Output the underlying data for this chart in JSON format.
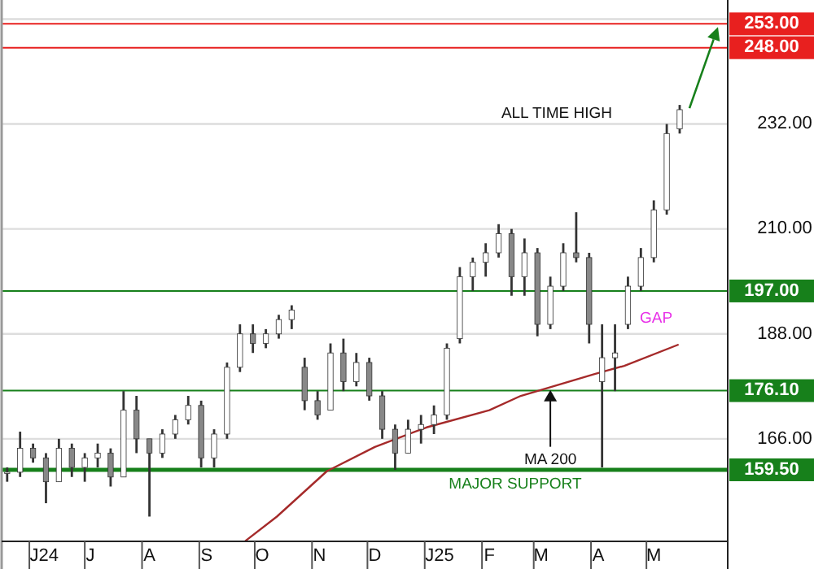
{
  "chart_data": {
    "type": "candlestick",
    "x": [
      "2024-05-20",
      "2024-05-27",
      "2024-06-03",
      "2024-06-10",
      "2024-06-17",
      "2024-06-24",
      "2024-07-01",
      "2024-07-08",
      "2024-07-15",
      "2024-07-22",
      "2024-07-29",
      "2024-08-05",
      "2024-08-12",
      "2024-08-19",
      "2024-08-26",
      "2024-09-02",
      "2024-09-09",
      "2024-09-16",
      "2024-09-23",
      "2024-09-30",
      "2024-10-07",
      "2024-10-14",
      "2024-10-21",
      "2024-10-28",
      "2024-11-04",
      "2024-11-11",
      "2024-11-18",
      "2024-11-25",
      "2024-12-02",
      "2024-12-09",
      "2024-12-16",
      "2024-12-23",
      "2024-12-30",
      "2025-01-06",
      "2025-01-13",
      "2025-01-20",
      "2025-01-27",
      "2025-02-03",
      "2025-02-10",
      "2025-02-17",
      "2025-02-24",
      "2025-03-03",
      "2025-03-10",
      "2025-03-17",
      "2025-03-24",
      "2025-03-31",
      "2025-04-07",
      "2025-04-14",
      "2025-04-21",
      "2025-04-28",
      "2025-05-05",
      "2025-05-12",
      "2025-05-19"
    ],
    "ohlc": [
      [
        159,
        160,
        157,
        159
      ],
      [
        159,
        167.5,
        158,
        164
      ],
      [
        164,
        165,
        161,
        162
      ],
      [
        162,
        163,
        152.5,
        157
      ],
      [
        157,
        166,
        157,
        164
      ],
      [
        164,
        165,
        158,
        160
      ],
      [
        160,
        163,
        157,
        162
      ],
      [
        162,
        165,
        160,
        163
      ],
      [
        163,
        164,
        156,
        158
      ],
      [
        158,
        176,
        158,
        172
      ],
      [
        172,
        175,
        163,
        166
      ],
      [
        166,
        166,
        149.7,
        163
      ],
      [
        163,
        168,
        162,
        167
      ],
      [
        167,
        171,
        166,
        170
      ],
      [
        170,
        175,
        169,
        173
      ],
      [
        173,
        174,
        160,
        162
      ],
      [
        162,
        168,
        160,
        167
      ],
      [
        167,
        182,
        166,
        181
      ],
      [
        181,
        190,
        180,
        188
      ],
      [
        188,
        190,
        184,
        186
      ],
      [
        186,
        189,
        185,
        188
      ],
      [
        188,
        192,
        187,
        191
      ],
      [
        191,
        194,
        189,
        193
      ],
      [
        181,
        183,
        172,
        174
      ],
      [
        174,
        176,
        170,
        171
      ],
      [
        172,
        186,
        172,
        184
      ],
      [
        184,
        187,
        176,
        178
      ],
      [
        178,
        184,
        177,
        182
      ],
      [
        182,
        183,
        174,
        175
      ],
      [
        175,
        176,
        166,
        168
      ],
      [
        168,
        169,
        159.5,
        163
      ],
      [
        163,
        170,
        163,
        168
      ],
      [
        168,
        171,
        165,
        169
      ],
      [
        169,
        173,
        167,
        171
      ],
      [
        171,
        186,
        170,
        185
      ],
      [
        187,
        202,
        186,
        200
      ],
      [
        200,
        204,
        197,
        203
      ],
      [
        203,
        207,
        200,
        205
      ],
      [
        205,
        211,
        204,
        209
      ],
      [
        209,
        210,
        196,
        200
      ],
      [
        200,
        208,
        196,
        205
      ],
      [
        205,
        206,
        187.5,
        190
      ],
      [
        190,
        200,
        189,
        198
      ],
      [
        198,
        207,
        197,
        205
      ],
      [
        205,
        213.5,
        203,
        204
      ],
      [
        204,
        205,
        186,
        190
      ],
      [
        178,
        190,
        160,
        183
      ],
      [
        183,
        190,
        176,
        184
      ],
      [
        190,
        200,
        189,
        198
      ],
      [
        198,
        206,
        197,
        204
      ],
      [
        204,
        216,
        203,
        214
      ],
      [
        214,
        232,
        213,
        230
      ],
      [
        231,
        236,
        230,
        235
      ]
    ],
    "color": "#333333",
    "series": [
      {
        "type": "line",
        "color": "#a52a2a",
        "x": [
          "2024-09-26",
          "2024-10-13",
          "2024-11-09",
          "2024-12-05",
          "2025-01-02",
          "2025-02-05",
          "2025-02-22",
          "2025-04-03",
          "2025-04-19",
          "2025-05-18"
        ],
        "values": [
          144.6,
          149.7,
          159.2,
          164.3,
          168.4,
          172,
          175,
          179.6,
          181.3,
          185.7
        ]
      }
    ],
    "xlim": [
      "2024-05-17",
      "2025-06-14"
    ],
    "xticks": [
      {
        "value": "2024-06-09",
        "label": "J24"
      },
      {
        "value": "2024-07-04",
        "label": "J"
      },
      {
        "value": "2024-08-05",
        "label": "A"
      },
      {
        "value": "2024-09-05",
        "label": "S"
      },
      {
        "value": "2024-10-05",
        "label": "O"
      },
      {
        "value": "2024-11-05",
        "label": "N"
      },
      {
        "value": "2024-12-05",
        "label": "D"
      },
      {
        "value": "2025-01-09",
        "label": "J25"
      },
      {
        "value": "2025-02-05",
        "label": "F"
      },
      {
        "value": "2025-03-05",
        "label": "M"
      },
      {
        "value": "2025-04-05",
        "label": "A"
      },
      {
        "value": "2025-05-05",
        "label": "M"
      }
    ],
    "ylim": [
      144.5,
      258
    ],
    "yticks": [
      {
        "value": 166,
        "label": "166.00"
      },
      {
        "value": 188,
        "label": "188.00"
      },
      {
        "value": 210,
        "label": "210.00"
      },
      {
        "value": 232,
        "label": "232.00"
      },
      {
        "value": 254,
        "label": null
      }
    ],
    "grid": "y",
    "ref_lines": [
      {
        "axis": "y",
        "value": 253,
        "label": "253.00",
        "color": "#e8201f"
      },
      {
        "axis": "y",
        "value": 248,
        "label": "248.00",
        "color": "#e8201f"
      },
      {
        "axis": "y",
        "value": 197,
        "label": "197.00",
        "color": "#17801b"
      },
      {
        "axis": "y",
        "value": 176.1,
        "label": "176.10",
        "color": "#17801b"
      },
      {
        "axis": "y",
        "value": 159.5,
        "label": "159.50",
        "color": "#17801b"
      }
    ],
    "annotations": [
      "ALL TIME HIGH",
      "GAP",
      {
        "text": "MA 200",
        "x": "2025-03-10",
        "y": 176.6
      },
      {
        "text": "MAJOR SUPPORT",
        "x": "2025-02-19",
        "y": 159.5
      }
    ]
  }
}
